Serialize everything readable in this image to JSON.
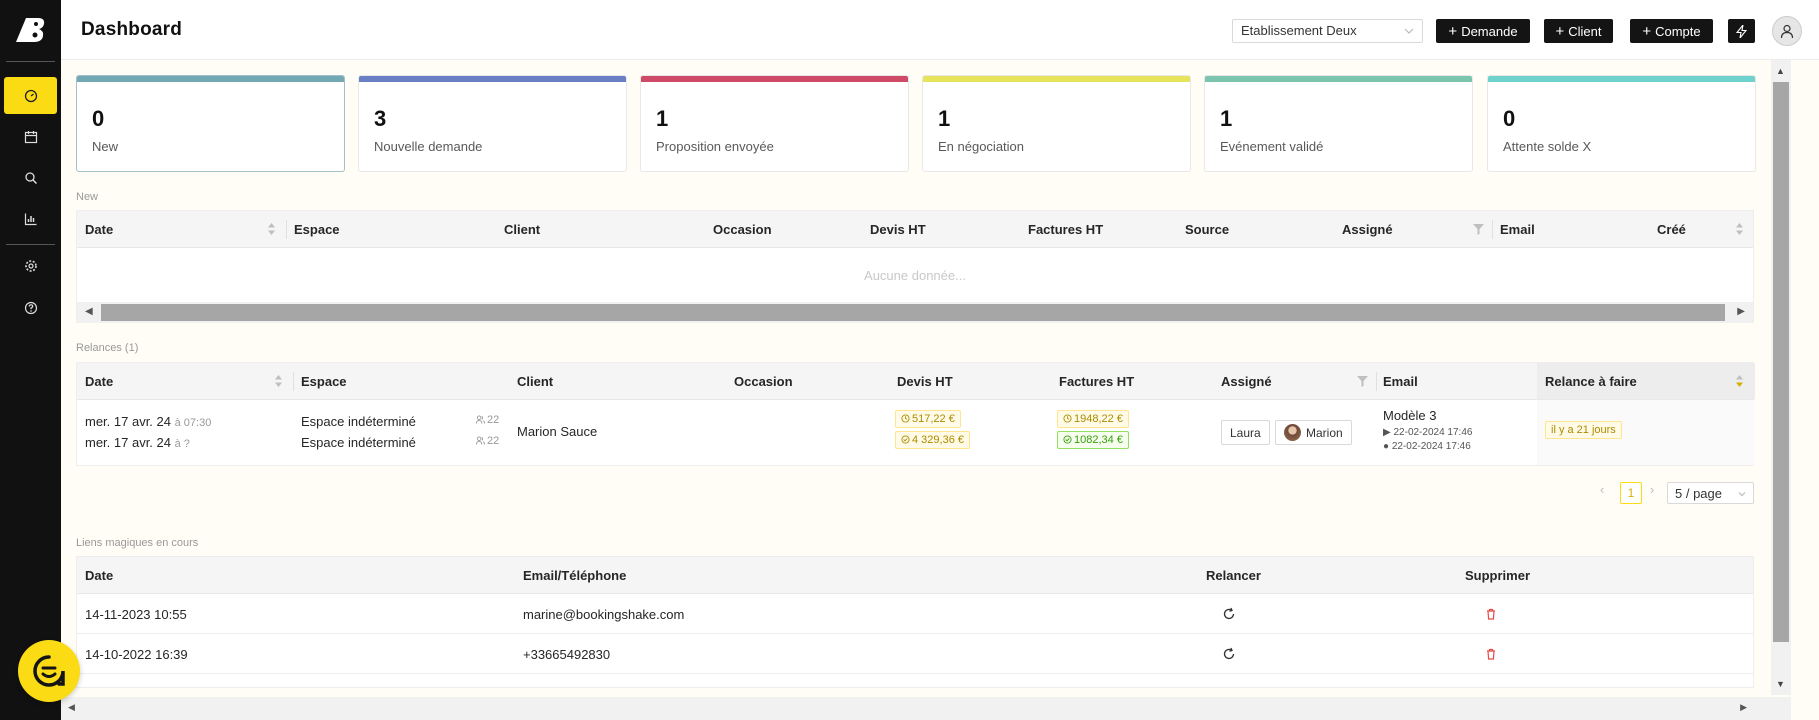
{
  "header": {
    "title": "Dashboard",
    "establishment": "Etablissement Deux",
    "buttons": {
      "demande": "Demande",
      "client": "Client",
      "compte": "Compte"
    }
  },
  "cards": [
    {
      "count": "0",
      "label": "New",
      "color": "#74a9b4"
    },
    {
      "count": "3",
      "label": "Nouvelle demande",
      "color": "#6b7fc4"
    },
    {
      "count": "1",
      "label": "Proposition envoyée",
      "color": "#cf4a66"
    },
    {
      "count": "1",
      "label": "En négociation",
      "color": "#e6e45a"
    },
    {
      "count": "1",
      "label": "Evénement validé",
      "color": "#7bc4ae"
    },
    {
      "count": "0",
      "label": "Attente solde X",
      "color": "#6fd1cc"
    }
  ],
  "new_section": {
    "caption": "New",
    "columns": [
      "Date",
      "Espace",
      "Client",
      "Occasion",
      "Devis HT",
      "Factures HT",
      "Source",
      "Assigné",
      "Email",
      "Créé"
    ],
    "empty": "Aucune donnée..."
  },
  "relances": {
    "caption": "Relances (1)",
    "columns": [
      "Date",
      "Espace",
      "Client",
      "Occasion",
      "Devis HT",
      "Factures HT",
      "Assigné",
      "Email",
      "Relance à faire"
    ],
    "row": {
      "date1": "mer. 17 avr. 24",
      "time1": "à 07:30",
      "date2": "mer. 17 avr. 24",
      "time2": "à ?",
      "espace1": "Espace indéterminé",
      "espace2": "Espace indéterminé",
      "cap1": "22",
      "cap2": "22",
      "client": "Marion Sauce",
      "devis1": "517,22 €",
      "devis2": "4 329,36 €",
      "fact1": "1948,22 €",
      "fact2": "1082,34 €",
      "assign1": "Laura",
      "assign2": "Marion",
      "email_model": "Modèle 3",
      "email_sent": "22-02-2024 17:46",
      "email_seen": "22-02-2024 17:46",
      "relance": "il y a 21 jours"
    },
    "pagination": {
      "current": "1",
      "page_size": "5 / page"
    }
  },
  "liens": {
    "caption": "Liens magiques en cours",
    "columns": [
      "Date",
      "Email/Téléphone",
      "Relancer",
      "Supprimer"
    ],
    "rows": [
      {
        "date": "14-11-2023 10:55",
        "contact": "marine@bookingshake.com"
      },
      {
        "date": "14-10-2022 16:39",
        "contact": "+33665492830"
      }
    ]
  }
}
